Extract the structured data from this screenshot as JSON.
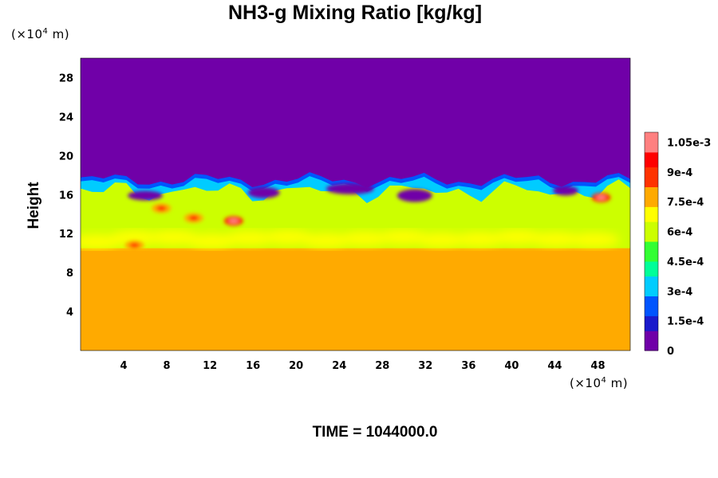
{
  "chart_data": {
    "type": "heatmap",
    "title": "NH3-g Mixing Ratio [kg/kg]",
    "ylabel": "Height",
    "xlabel": "",
    "x_unit": "(×10⁴ m)",
    "y_unit": "(×10⁴ m)",
    "unit_prefix": "(×10",
    "unit_exp": "4",
    "unit_suffix": " m)",
    "x_ticks": [
      4,
      8,
      12,
      16,
      20,
      24,
      28,
      32,
      36,
      40,
      44,
      48
    ],
    "y_ticks": [
      4,
      8,
      12,
      16,
      20,
      24,
      28
    ],
    "xlim": [
      0,
      51
    ],
    "ylim": [
      0,
      30
    ],
    "colorbar": {
      "min": 0,
      "max": 0.0011,
      "labels": [
        {
          "value": 0,
          "text": "0"
        },
        {
          "value": 0.00015,
          "text": "1.5e-4"
        },
        {
          "value": 0.0003,
          "text": "3e-4"
        },
        {
          "value": 0.00045,
          "text": "4.5e-4"
        },
        {
          "value": 0.0006,
          "text": "6e-4"
        },
        {
          "value": 0.00075,
          "text": "7.5e-4"
        },
        {
          "value": 0.0009,
          "text": "9e-4"
        },
        {
          "value": 0.00105,
          "text": "1.05e-3"
        }
      ]
    },
    "field_summary": {
      "lower_layer_top": 10.5,
      "lower_layer_value": 0.00078,
      "cloud_top_mean": 17.5,
      "upper_layer_value": 0
    },
    "features": [
      {
        "x": 14.2,
        "y": 13.3,
        "value": 0.00106
      },
      {
        "x": 48.3,
        "y": 15.7,
        "value": 0.00104
      },
      {
        "x": 7.5,
        "y": 14.6,
        "value": 0.00095
      },
      {
        "x": 5.0,
        "y": 10.8,
        "value": 0.0009
      },
      {
        "x": 10.5,
        "y": 13.6,
        "value": 0.00092
      }
    ],
    "colors": {
      "background": "#ffffff",
      "colormap": [
        "#7000a8",
        "#1a1acc",
        "#0055ff",
        "#00ccff",
        "#00ff99",
        "#33ff33",
        "#ccff00",
        "#ffff00",
        "#ffaa00",
        "#ff3300",
        "#ff0000",
        "#ff8080"
      ]
    }
  },
  "footer": {
    "time_label": "TIME = 1044000.0"
  }
}
